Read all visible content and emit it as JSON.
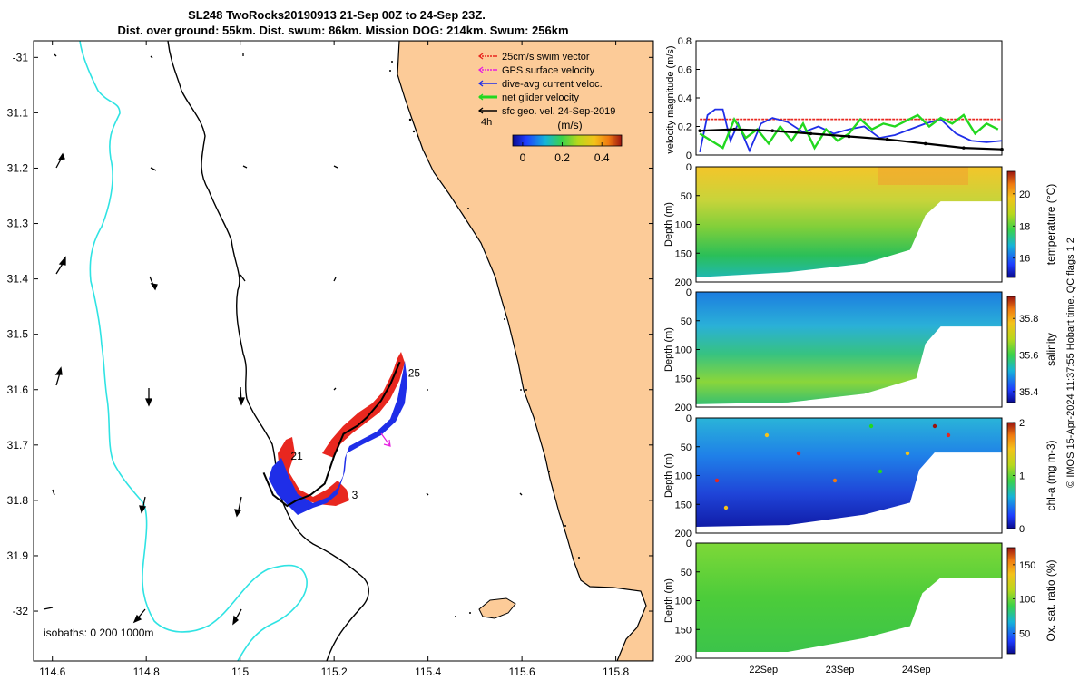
{
  "chart_data": [
    {
      "type": "scatter",
      "name": "map",
      "title": [
        "SL248 TwoRocks20190913 21-Sep 00Z to 24-Sep 23Z.",
        "Dist. over ground: 55km. Dist. swum: 86km. Mission DOG: 214km. Swum: 256km"
      ],
      "xlim": [
        114.56,
        115.88
      ],
      "ylim": [
        -32.09,
        -30.97
      ],
      "x_ticks": [
        114.6,
        114.8,
        115,
        115.2,
        115.4,
        115.6,
        115.8
      ],
      "x_tick_labels": [
        "114.6",
        "114.8",
        "115",
        "115.2",
        "115.4",
        "115.6",
        "115.8"
      ],
      "y_ticks": [
        -31,
        -31.1,
        -31.2,
        -31.3,
        -31.4,
        -31.5,
        -31.6,
        -31.7,
        -31.8,
        -31.9,
        -32
      ],
      "y_tick_labels": [
        "-31",
        "31.1",
        "31.2",
        "31.3",
        "31.4",
        "31.5",
        "31.6",
        "31.7",
        "31.8",
        "31.9",
        "-32"
      ],
      "legend": [
        {
          "label": "25cm/s swim vector",
          "color": "#e8271f"
        },
        {
          "label": "GPS surface velocity",
          "color": "#e61fe0"
        },
        {
          "label": "dive-avg current veloc.",
          "color": "#1f2ee8"
        },
        {
          "label": "net glider velocity",
          "color": "#22d81f"
        },
        {
          "label": "sfc geo. vel. 24-Sep-2019",
          "color": "#000000"
        }
      ],
      "colorbar": {
        "title": "(m/s)",
        "ticks": [
          0,
          0.2,
          0.4
        ],
        "tick_labels": [
          "0",
          "0.2",
          "0.4"
        ],
        "range": [
          -0.05,
          0.5
        ]
      },
      "glider_track": {
        "lon": [
          115.05,
          115.07,
          115.1,
          115.12,
          115.15,
          115.18,
          115.2,
          115.22,
          115.24,
          115.25,
          115.27,
          115.3,
          115.32,
          115.33,
          115.34
        ],
        "lat": [
          -31.75,
          -31.79,
          -31.81,
          -31.8,
          -31.79,
          -31.77,
          -31.72,
          -31.68,
          -31.67,
          -31.665,
          -31.65,
          -31.62,
          -31.59,
          -31.57,
          -31.55
        ]
      },
      "day_labels": [
        {
          "text": "21",
          "lon": 115.1,
          "lat": -31.72
        },
        {
          "text": "3",
          "lon": 115.23,
          "lat": -31.79
        },
        {
          "text": "25",
          "lon": 115.35,
          "lat": -31.57
        }
      ],
      "scale_label": "4h",
      "isobaths_label": "isobaths: 0   200  1000m"
    },
    {
      "type": "line",
      "name": "velocity-magnitude",
      "ylabel": "velocity magnitude (m/s)",
      "ylim": [
        0,
        0.8
      ],
      "y_ticks": [
        0,
        0.2,
        0.4,
        0.6,
        0.8
      ],
      "y_tick_labels": [
        "0",
        "0.2",
        "0.4",
        "0.6",
        "0.8"
      ],
      "xlim": [
        0,
        4
      ],
      "series": [
        {
          "name": "25cm/s swim",
          "color": "#e8271f",
          "x": [
            0.05,
            4
          ],
          "values": [
            0.25,
            0.25
          ]
        },
        {
          "name": "dive-avg current",
          "color": "#1f2ee8",
          "x": [
            0.05,
            0.15,
            0.25,
            0.35,
            0.45,
            0.55,
            0.7,
            0.85,
            1.0,
            1.2,
            1.4,
            1.6,
            1.8,
            2.0,
            2.2,
            2.4,
            2.6,
            2.8,
            3.0,
            3.2,
            3.4,
            3.6,
            3.8,
            4.0
          ],
          "values": [
            0.02,
            0.28,
            0.32,
            0.32,
            0.1,
            0.22,
            0.03,
            0.22,
            0.26,
            0.23,
            0.16,
            0.2,
            0.15,
            0.18,
            0.2,
            0.12,
            0.14,
            0.18,
            0.22,
            0.25,
            0.15,
            0.1,
            0.09,
            0.1
          ]
        },
        {
          "name": "net glider",
          "color": "#22d81f",
          "x": [
            0.05,
            0.2,
            0.35,
            0.5,
            0.65,
            0.8,
            0.95,
            1.1,
            1.25,
            1.4,
            1.55,
            1.7,
            1.85,
            2.0,
            2.15,
            2.3,
            2.45,
            2.6,
            2.75,
            2.9,
            3.05,
            3.2,
            3.35,
            3.5,
            3.65,
            3.8,
            3.95
          ],
          "values": [
            0.15,
            0.1,
            0.05,
            0.25,
            0.12,
            0.18,
            0.08,
            0.2,
            0.1,
            0.22,
            0.05,
            0.18,
            0.1,
            0.15,
            0.25,
            0.18,
            0.22,
            0.2,
            0.24,
            0.28,
            0.2,
            0.26,
            0.22,
            0.28,
            0.15,
            0.22,
            0.18
          ]
        },
        {
          "name": "sfc geo vel",
          "color": "#000000",
          "x": [
            0.05,
            0.5,
            1.0,
            1.5,
            2.0,
            2.5,
            3.0,
            3.5,
            4.0
          ],
          "values": [
            0.17,
            0.18,
            0.17,
            0.15,
            0.13,
            0.11,
            0.08,
            0.05,
            0.04
          ]
        }
      ]
    },
    {
      "type": "heatmap",
      "name": "temperature",
      "ylabel": "Depth (m)",
      "ylim": [
        0,
        200
      ],
      "y_ticks": [
        0,
        50,
        100,
        150,
        200
      ],
      "y_tick_labels": [
        "0",
        "50",
        "100",
        "150",
        "200"
      ],
      "cbar_label": "temperature (°C)",
      "cbar_ticks": [
        16,
        18,
        20
      ],
      "cbar_tick_labels": [
        "16",
        "18",
        "20"
      ],
      "cbar_range": [
        14.8,
        21.4
      ]
    },
    {
      "type": "heatmap",
      "name": "salinity",
      "ylabel": "Depth (m)",
      "ylim": [
        0,
        200
      ],
      "y_ticks": [
        0,
        50,
        100,
        150,
        200
      ],
      "y_tick_labels": [
        "0",
        "50",
        "100",
        "150",
        "200"
      ],
      "cbar_label": "salinity",
      "cbar_ticks": [
        35.4,
        35.6,
        35.8
      ],
      "cbar_tick_labels": [
        "35.4",
        "35.6",
        "35.8"
      ],
      "cbar_range": [
        35.34,
        35.92
      ]
    },
    {
      "type": "heatmap",
      "name": "chl-a",
      "ylabel": "Depth (m)",
      "ylim": [
        0,
        200
      ],
      "y_ticks": [
        0,
        50,
        100,
        150,
        200
      ],
      "y_tick_labels": [
        "0",
        "50",
        "100",
        "150",
        "200"
      ],
      "cbar_label": "chl-a (mg m-3)",
      "cbar_ticks": [
        0,
        1,
        2
      ],
      "cbar_tick_labels": [
        "0",
        "1",
        "2"
      ],
      "cbar_range": [
        0,
        2
      ]
    },
    {
      "type": "heatmap",
      "name": "oxygen",
      "ylabel": "Depth (m)",
      "ylim": [
        0,
        200
      ],
      "y_ticks": [
        0,
        50,
        100,
        150,
        200
      ],
      "y_tick_labels": [
        "0",
        "50",
        "100",
        "150",
        "200"
      ],
      "cbar_label": "Ox. sat. ratio (%)",
      "cbar_ticks": [
        50,
        100,
        150
      ],
      "cbar_tick_labels": [
        "50",
        "100",
        "150"
      ],
      "cbar_range": [
        20,
        175
      ],
      "x_tick_labels": [
        "22Sep",
        "23Sep",
        "24Sep"
      ],
      "x_ticks": [
        1,
        2,
        3
      ]
    }
  ],
  "side_note": "© IMOS 15-Apr-2024 11:37:55 Hobart time. QC flags 1  2"
}
